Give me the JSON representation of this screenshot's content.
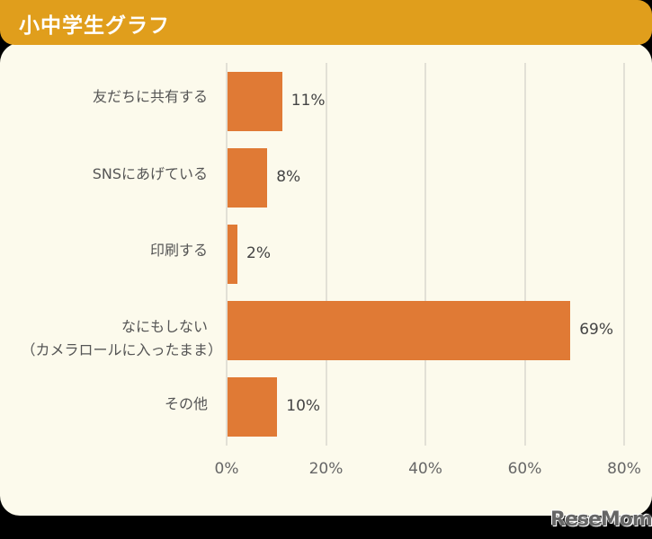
{
  "title": "小中学生グラフ",
  "logo": "ReseMom.",
  "colors": {
    "header": "#E09E1C",
    "background": "#FCFAEC",
    "bar": "#E07A35",
    "grid": "#E2E0D6"
  },
  "chart_data": {
    "type": "bar",
    "orientation": "horizontal",
    "title": "小中学生グラフ",
    "categories": [
      "友だちに共有する",
      "SNSにあげている",
      "印刷する",
      "なにもしない（カメラロールに入ったまま）",
      "その他"
    ],
    "values": [
      11,
      8,
      2,
      69,
      10
    ],
    "value_labels": [
      "11%",
      "8%",
      "2%",
      "69%",
      "10%"
    ],
    "xlabel": "",
    "ylabel": "",
    "xlim": [
      0,
      80
    ],
    "xticks": [
      "0%",
      "20%",
      "40%",
      "60%",
      "80%"
    ],
    "grid": true,
    "legend": null
  },
  "labels": {
    "c0": "友だちに共有する",
    "c1": "SNSにあげている",
    "c2": "印刷する",
    "c3a": "なにもしない",
    "c3b": "（カメラロールに入ったまま）",
    "c4": "その他"
  }
}
